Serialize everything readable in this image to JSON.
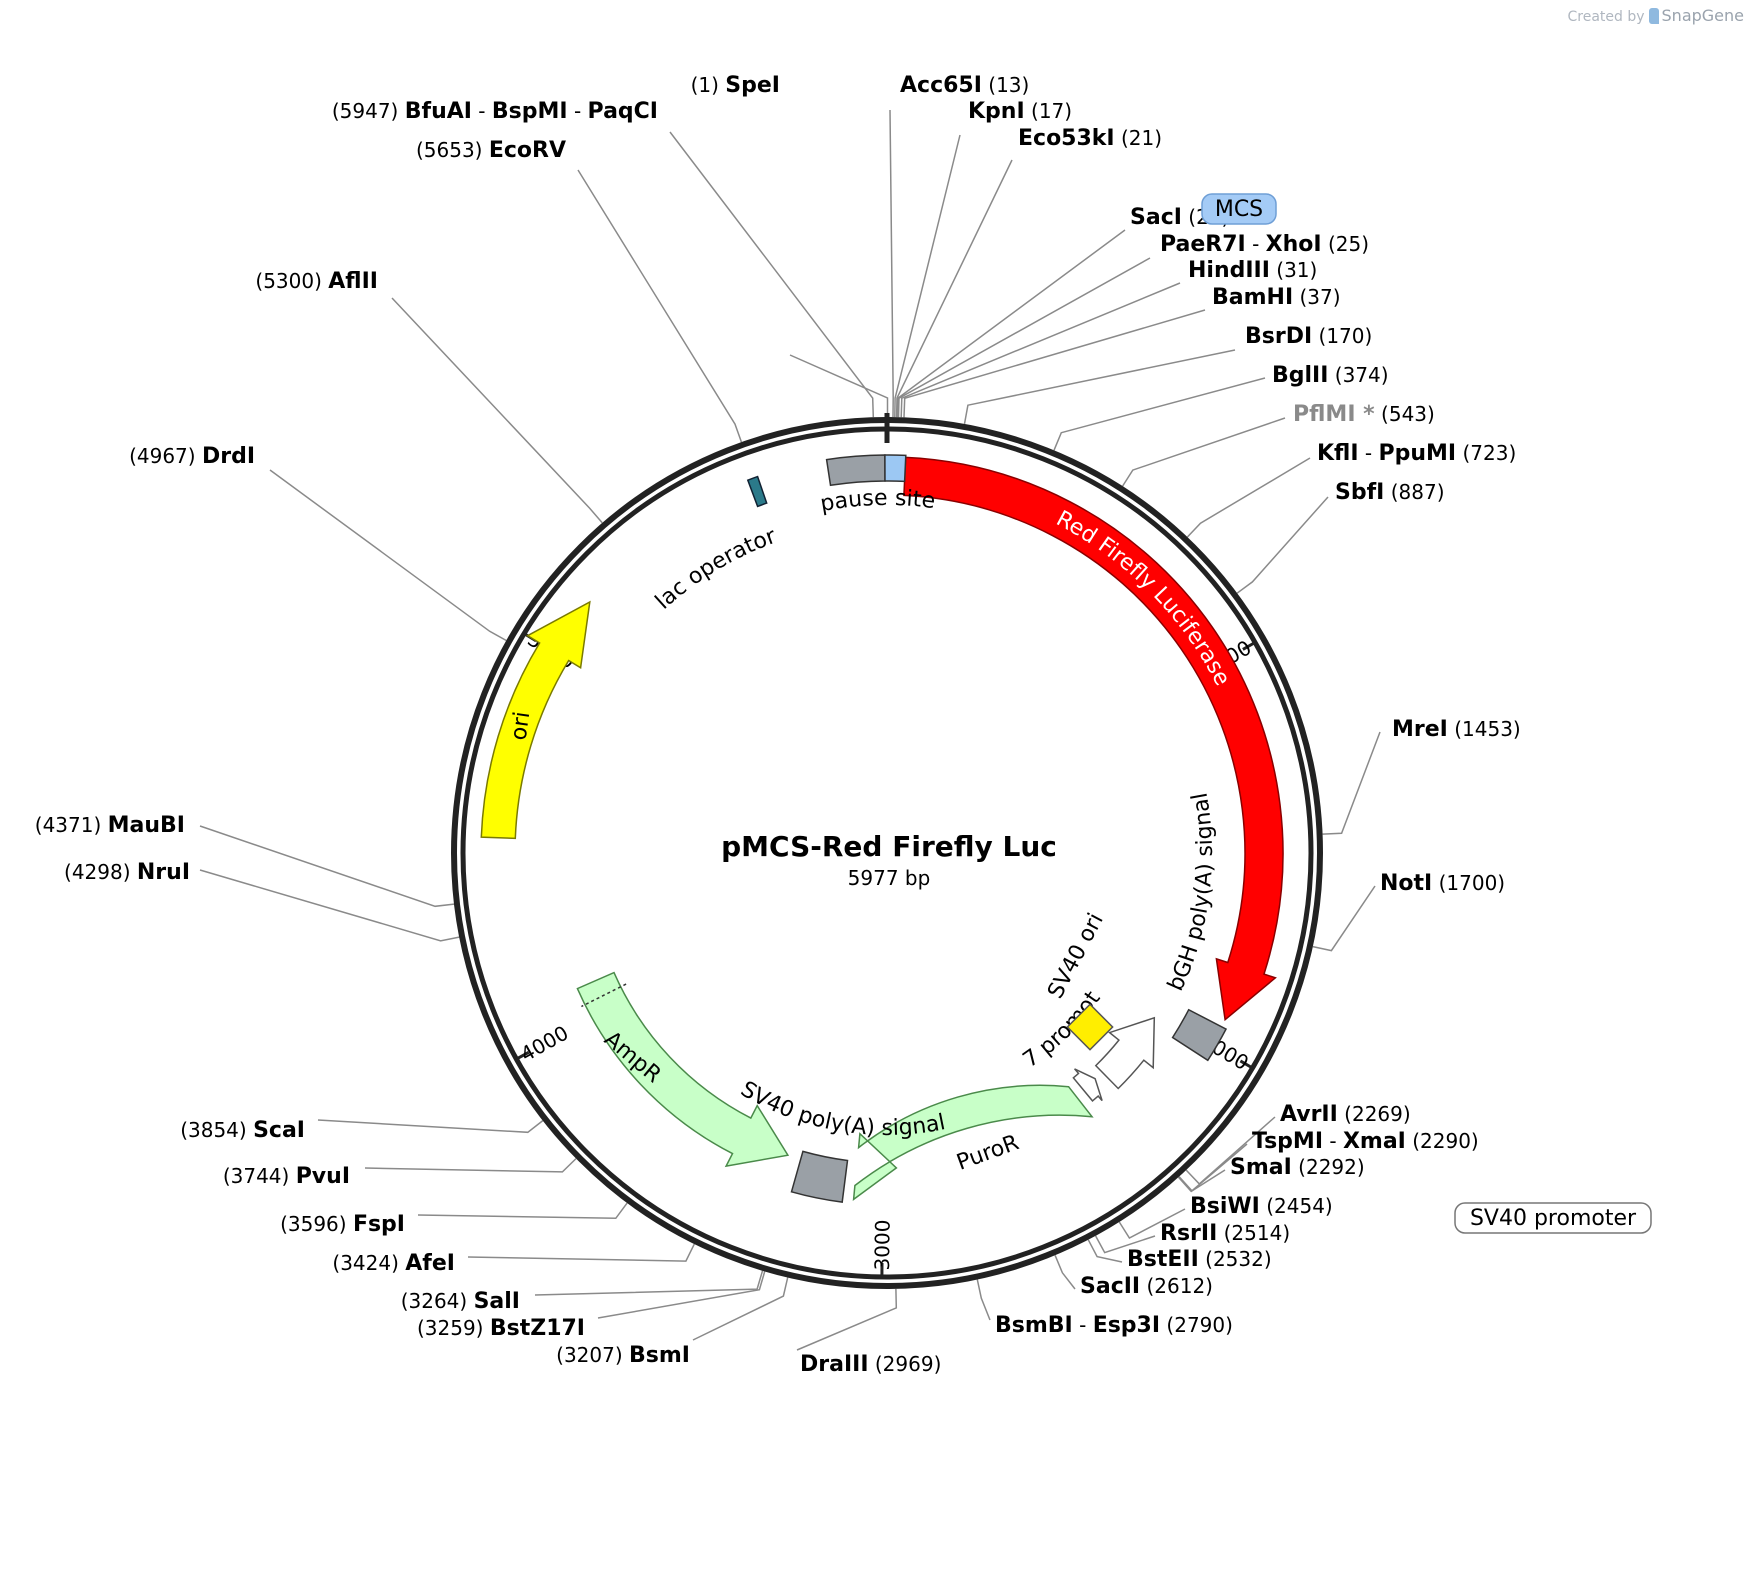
{
  "credit": {
    "prefix": "Created by",
    "brand": "SnapGene"
  },
  "plasmid": {
    "name": "pMCS-Red Firefly Luc",
    "length_label": "5977 bp",
    "length": 5977
  },
  "ticks": [
    "1000",
    "2000",
    "3000",
    "4000",
    "5000"
  ],
  "features": {
    "red_luc": {
      "label": "Red Firefly Luciferase",
      "color": "#ff0000"
    },
    "pause": {
      "label": "pause site"
    },
    "lac": {
      "label": "lac operator"
    },
    "bgh": {
      "label": "bGH poly(A) signal"
    },
    "sv40ori": {
      "label": "SV40 ori",
      "color": "#ffee00"
    },
    "em7": {
      "label": "EM7 promoter"
    },
    "puro": {
      "label": "PuroR",
      "color": "#c8ffc8"
    },
    "sv40pa": {
      "label": "SV40 poly(A) signal"
    },
    "ampr": {
      "label": "AmpR",
      "color": "#c8ffc8"
    },
    "ori": {
      "label": "ori",
      "color": "#ffff00"
    },
    "mcs": {
      "label": "MCS",
      "color": "#a4cbf6"
    },
    "sv40prom": {
      "label": "SV40 promoter"
    }
  },
  "sites": [
    {
      "name": "SpeI",
      "pos": "(1)"
    },
    {
      "name": "Acc65I",
      "pos": "(13)"
    },
    {
      "name": "KpnI",
      "pos": "(17)"
    },
    {
      "name": "Eco53kI",
      "pos": "(21)"
    },
    {
      "name": "SacI",
      "pos": "(23)"
    },
    {
      "name": "PaeR7I",
      "name2": "XhoI",
      "pos": "(25)"
    },
    {
      "name": "HindIII",
      "pos": "(31)"
    },
    {
      "name": "BamHI",
      "pos": "(37)"
    },
    {
      "name": "BsrDI",
      "pos": "(170)"
    },
    {
      "name": "BglII",
      "pos": "(374)"
    },
    {
      "name": "PflMI *",
      "pos": "(543)",
      "grey": true
    },
    {
      "name": "KflI",
      "name2": "PpuMI",
      "pos": "(723)"
    },
    {
      "name": "SbfI",
      "pos": "(887)"
    },
    {
      "name": "MreI",
      "pos": "(1453)"
    },
    {
      "name": "NotI",
      "pos": "(1700)"
    },
    {
      "name": "AvrII",
      "pos": "(2269)"
    },
    {
      "name": "TspMI",
      "name2": "XmaI",
      "pos": "(2290)"
    },
    {
      "name": "SmaI",
      "pos": "(2292)"
    },
    {
      "name": "BsiWI",
      "pos": "(2454)"
    },
    {
      "name": "RsrII",
      "pos": "(2514)"
    },
    {
      "name": "BstEII",
      "pos": "(2532)"
    },
    {
      "name": "SacII",
      "pos": "(2612)"
    },
    {
      "name": "BsmBI",
      "name2": "Esp3I",
      "pos": "(2790)"
    },
    {
      "name": "DraIII",
      "pos": "(2969)"
    },
    {
      "name": "BsmI",
      "pos": "(3207)"
    },
    {
      "name": "BstZ17I",
      "pos": "(3259)"
    },
    {
      "name": "SalI",
      "pos": "(3264)"
    },
    {
      "name": "AfeI",
      "pos": "(3424)"
    },
    {
      "name": "FspI",
      "pos": "(3596)"
    },
    {
      "name": "PvuI",
      "pos": "(3744)"
    },
    {
      "name": "ScaI",
      "pos": "(3854)"
    },
    {
      "name": "NruI",
      "pos": "(4298)"
    },
    {
      "name": "MauBI",
      "pos": "(4371)"
    },
    {
      "name": "DrdI",
      "pos": "(4967)"
    },
    {
      "name": "AflII",
      "pos": "(5300)"
    },
    {
      "name": "EcoRV",
      "pos": "(5653)"
    },
    {
      "name": "BfuAI",
      "name2": "BspMI",
      "name3": "PaqCI",
      "pos": "(5947)"
    }
  ]
}
